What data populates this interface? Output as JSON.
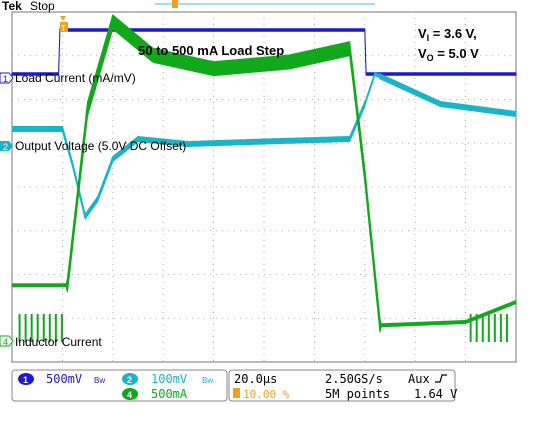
{
  "header": {
    "brand": "Tek",
    "status": "Stop"
  },
  "annotations": {
    "title": "50 to 500 mA Load Step",
    "vi": "V",
    "vi_sub": "I",
    "vi_val": " = 3.6 V,",
    "vo": "V",
    "vo_sub": "O",
    "vo_val": " = 5.0 V"
  },
  "channels": [
    {
      "id": "1",
      "label": "Load Current (mA/mV)",
      "color": "#1a1acc"
    },
    {
      "id": "2",
      "label": "Output Voltage (5.0V DC Offset)",
      "color": "#1ab4c8"
    },
    {
      "id": "4",
      "label": "Inductor Current",
      "color": "#12a81c"
    }
  ],
  "footer": {
    "ch1_scale": "500mV",
    "ch2_scale": "100mV",
    "ch4_scale": "500mA",
    "timebase": "20.0µs",
    "trigger_pos": "10.00 %",
    "sample_rate": "2.50GS/s",
    "record_length": "5M points",
    "trigger_source": "Aux",
    "trigger_level": "1.64 V"
  },
  "colors": {
    "ch1": "#1a1acc",
    "ch2": "#1ab4c8",
    "ch4": "#12a81c",
    "trigger_marker": "#f0a020",
    "grid": "#888888"
  },
  "chart_data": {
    "type": "line",
    "grid": true,
    "x": {
      "unit": "µs",
      "per_div": 20,
      "divisions": 10
    },
    "series": [
      {
        "name": "Load Current (mA/mV)",
        "trace": [
          [
            0,
            50
          ],
          [
            9.4,
            50
          ],
          [
            9.4,
            500
          ],
          [
            70,
            500
          ],
          [
            70,
            50
          ],
          [
            100,
            50
          ]
        ]
      },
      {
        "name": "Output Voltage (5.0V DC Offset)",
        "trace": [
          [
            0,
            0
          ],
          [
            10,
            0
          ],
          [
            12,
            -70
          ],
          [
            14.5,
            -175
          ],
          [
            17,
            -140
          ],
          [
            20,
            -60
          ],
          [
            25,
            -20
          ],
          [
            35,
            -30
          ],
          [
            50,
            -25
          ],
          [
            67,
            -20
          ],
          [
            70,
            50
          ],
          [
            72,
            110
          ],
          [
            85,
            50
          ],
          [
            100,
            30
          ]
        ]
      },
      {
        "name": "Inductor Current",
        "trace": [
          [
            0,
            170
          ],
          [
            11,
            170
          ],
          [
            15,
            700
          ],
          [
            20,
            960
          ],
          [
            28,
            860
          ],
          [
            40,
            820
          ],
          [
            55,
            840
          ],
          [
            67,
            880
          ],
          [
            70,
            500
          ],
          [
            73,
            50
          ],
          [
            90,
            60
          ],
          [
            100,
            120
          ]
        ]
      }
    ]
  }
}
